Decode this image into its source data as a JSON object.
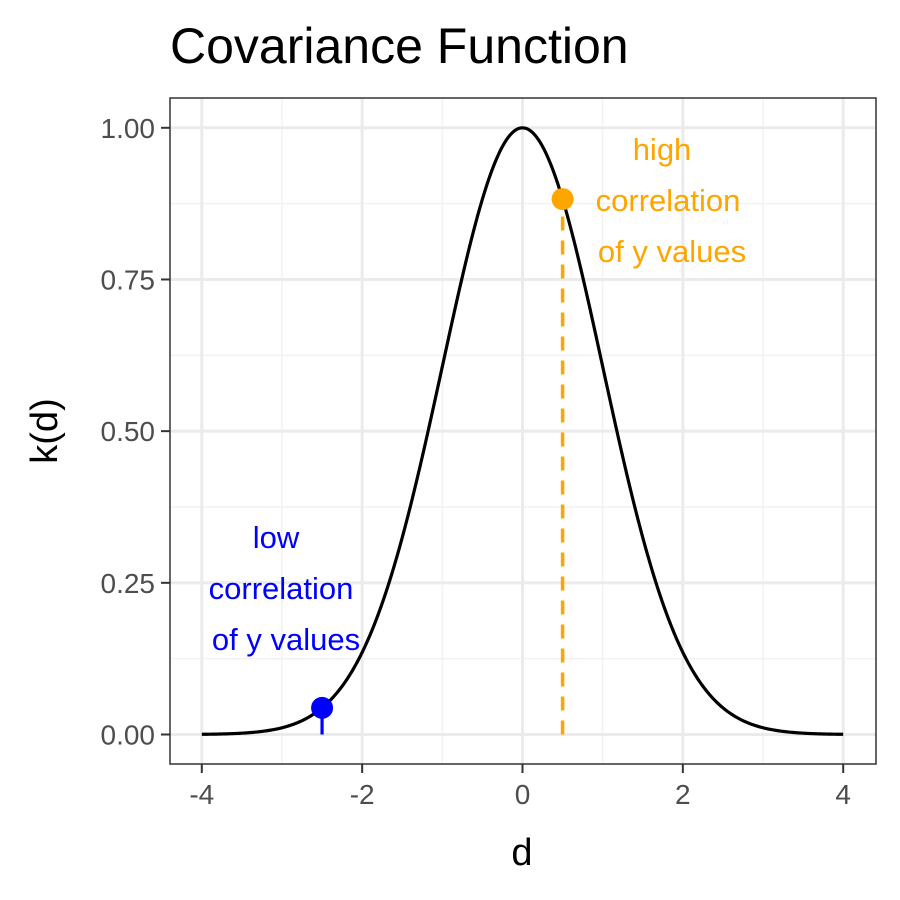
{
  "chart_data": {
    "type": "line",
    "title": "Covariance Function",
    "xlabel": "d",
    "ylabel": "k(d)",
    "xlim": [
      -4,
      4
    ],
    "ylim": [
      0,
      1
    ],
    "x_ticks": [
      -4,
      -2,
      0,
      2,
      4
    ],
    "x_tick_labels": [
      "-4",
      "-2",
      "0",
      "2",
      "4"
    ],
    "y_ticks": [
      0,
      0.25,
      0.5,
      0.75,
      1
    ],
    "y_tick_labels": [
      "0.00",
      "0.25",
      "0.50",
      "0.75",
      "1.00"
    ],
    "grid": true,
    "series": [
      {
        "function": "exp(-d^2/2)",
        "x": [
          -4,
          -3.5,
          -3,
          -2.5,
          -2,
          -1.5,
          -1,
          -0.5,
          0,
          0.5,
          1,
          1.5,
          2,
          2.5,
          3,
          3.5,
          4
        ],
        "values": [
          0.0003,
          0.0022,
          0.0111,
          0.0439,
          0.1353,
          0.3247,
          0.6065,
          0.8825,
          1.0,
          0.8825,
          0.6065,
          0.3247,
          0.1353,
          0.0439,
          0.0111,
          0.0022,
          0.0003
        ],
        "color": "#000000"
      }
    ],
    "highlight_points": [
      {
        "x": -2.5,
        "y": 0.0439,
        "color": "#0000FF"
      },
      {
        "x": 0.5,
        "y": 0.8825,
        "color": "#FFA500"
      }
    ],
    "annotations": [
      {
        "lines": [
          "high",
          "correlation",
          "of y values"
        ],
        "color": "#FFA500"
      },
      {
        "lines": [
          "low",
          "correlation",
          "of y values"
        ],
        "color": "#0000FF"
      }
    ]
  }
}
